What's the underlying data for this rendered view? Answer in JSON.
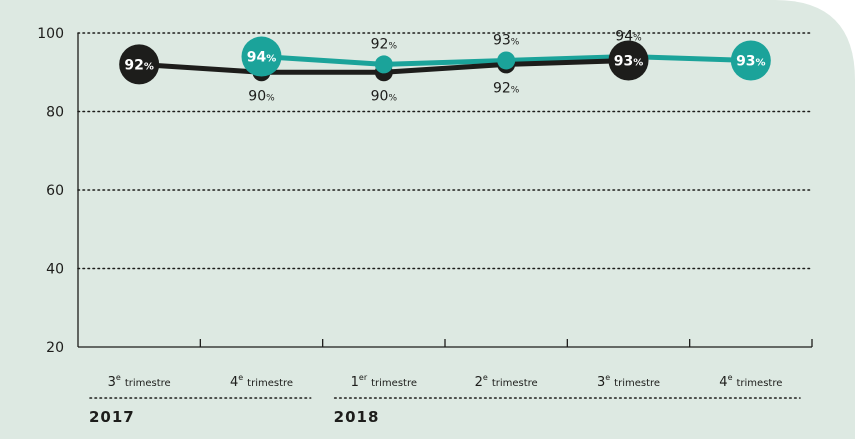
{
  "colors": {
    "background": "#dde9e2",
    "black_series": "#1d1d1b",
    "teal_series": "#1ba39a",
    "grid": "#1d1d1b"
  },
  "chart_data": {
    "type": "line",
    "title": "",
    "xlabel": "",
    "ylabel": "",
    "ylim": [
      20,
      100
    ],
    "yticks": [
      "20",
      "40",
      "60",
      "80",
      "100"
    ],
    "grid": "dotted horizontal",
    "categories": [
      {
        "num": "3",
        "sup": "e",
        "word": "trimestre"
      },
      {
        "num": "4",
        "sup": "e",
        "word": "trimestre"
      },
      {
        "num": "1",
        "sup": "er",
        "word": "trimestre"
      },
      {
        "num": "2",
        "sup": "e",
        "word": "trimestre"
      },
      {
        "num": "3",
        "sup": "e",
        "word": "trimestre"
      },
      {
        "num": "4",
        "sup": "e",
        "word": "trimestre"
      }
    ],
    "years": [
      {
        "label": "2017",
        "span": [
          0,
          1
        ]
      },
      {
        "label": "2018",
        "span": [
          2,
          5
        ]
      }
    ],
    "series": [
      {
        "color": "black",
        "values": [
          92,
          90,
          90,
          92,
          93,
          null
        ],
        "labels": [
          "92%",
          "90%",
          "90%",
          "92%",
          "93%",
          ""
        ],
        "highlight": [
          0,
          4
        ]
      },
      {
        "color": "teal",
        "values": [
          null,
          94,
          92,
          93,
          94,
          93
        ],
        "labels": [
          "",
          "94%",
          "92%",
          "93%",
          "94%",
          "93%"
        ],
        "highlight": [
          1,
          5
        ]
      }
    ]
  }
}
